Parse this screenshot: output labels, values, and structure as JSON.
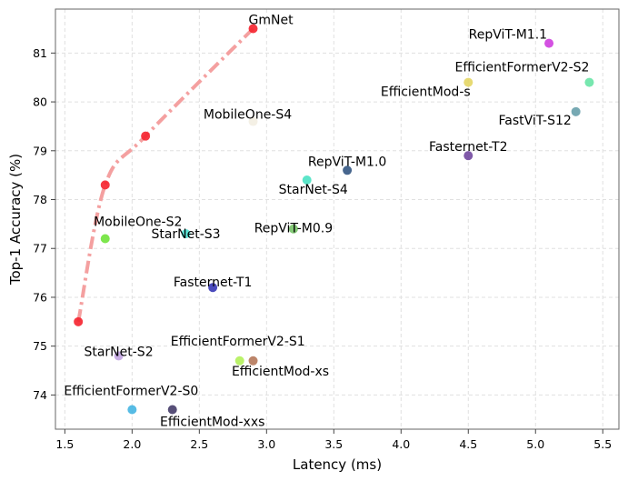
{
  "chart_data": {
    "type": "scatter",
    "title": "",
    "xlabel": "Latency (ms)",
    "ylabel": "Top-1 Accuracy (%)",
    "xlim": [
      1.43,
      5.62
    ],
    "ylim": [
      73.3,
      81.9
    ],
    "xticks": [
      "1.5",
      "2.0",
      "2.5",
      "3.0",
      "3.5",
      "4.0",
      "4.5",
      "5.0",
      "5.5"
    ],
    "yticks": [
      "74",
      "75",
      "76",
      "77",
      "78",
      "79",
      "80",
      "81"
    ],
    "grid": true,
    "frontier": {
      "name": "GmNet",
      "color": "#f4a0a0",
      "point_color": "#f5222d",
      "x": [
        1.6,
        1.8,
        2.1,
        2.9
      ],
      "y": [
        75.5,
        78.3,
        79.3,
        81.5
      ]
    },
    "points": [
      {
        "name": "GmNet",
        "x": 2.9,
        "y": 81.5,
        "color": "#f5222d",
        "label": "GmNet"
      },
      {
        "name": "RepViT-M1.1",
        "x": 5.1,
        "y": 81.2,
        "color": "#cc33dd",
        "label": "RepViT-M1.1"
      },
      {
        "name": "EfficientFormerV2-S2",
        "x": 5.4,
        "y": 80.4,
        "color": "#5fe3a1",
        "label": "EfficientFormerV2-S2"
      },
      {
        "name": "EfficientMod-s",
        "x": 4.5,
        "y": 80.4,
        "color": "#e3d35a",
        "label": "EfficientMod-s"
      },
      {
        "name": "FastViT-S12",
        "x": 5.3,
        "y": 79.8,
        "color": "#5f9aa6",
        "label": "FastViT-S12"
      },
      {
        "name": "MobileOne-S4",
        "x": 2.9,
        "y": 79.6,
        "color": "#f2ede0",
        "label": "MobileOne-S4"
      },
      {
        "name": "Fasternet-T2",
        "x": 4.5,
        "y": 78.9,
        "color": "#6a3d9a",
        "label": "Fasternet-T2"
      },
      {
        "name": "RepViT-M1.0",
        "x": 3.6,
        "y": 78.6,
        "color": "#274b7a",
        "label": "RepViT-M1.0"
      },
      {
        "name": "StarNet-S4",
        "x": 3.3,
        "y": 78.4,
        "color": "#40e0c0",
        "label": "StarNet-S4"
      },
      {
        "name": "MobileOne-S2",
        "x": 1.8,
        "y": 77.2,
        "color": "#66e22e",
        "label": "MobileOne-S2"
      },
      {
        "name": "StarNet-S3",
        "x": 2.4,
        "y": 77.3,
        "color": "#40e0d0",
        "label": "StarNet-S3"
      },
      {
        "name": "RepViT-M0.9",
        "x": 3.2,
        "y": 77.4,
        "color": "#6fbf5f",
        "label": "RepViT-M0.9"
      },
      {
        "name": "Fasternet-T1",
        "x": 2.6,
        "y": 76.2,
        "color": "#2a2ab0",
        "label": "Fasternet-T1"
      },
      {
        "name": "StarNet-S2",
        "x": 1.9,
        "y": 74.8,
        "color": "#c0a0e0",
        "label": "StarNet-S2"
      },
      {
        "name": "EfficientFormerV2-S1",
        "x": 2.8,
        "y": 74.7,
        "color": "#aef050",
        "label": "EfficientFormerV2-S1"
      },
      {
        "name": "EfficientMod-xs",
        "x": 2.9,
        "y": 74.7,
        "color": "#b07050",
        "label": "EfficientMod-xs"
      },
      {
        "name": "EfficientFormerV2-S0",
        "x": 2.0,
        "y": 73.7,
        "color": "#3ab0e0",
        "label": "EfficientFormerV2-S0"
      },
      {
        "name": "EfficientMod-xxs",
        "x": 2.3,
        "y": 73.7,
        "color": "#3a3060",
        "label": "EfficientMod-xxs"
      }
    ]
  }
}
